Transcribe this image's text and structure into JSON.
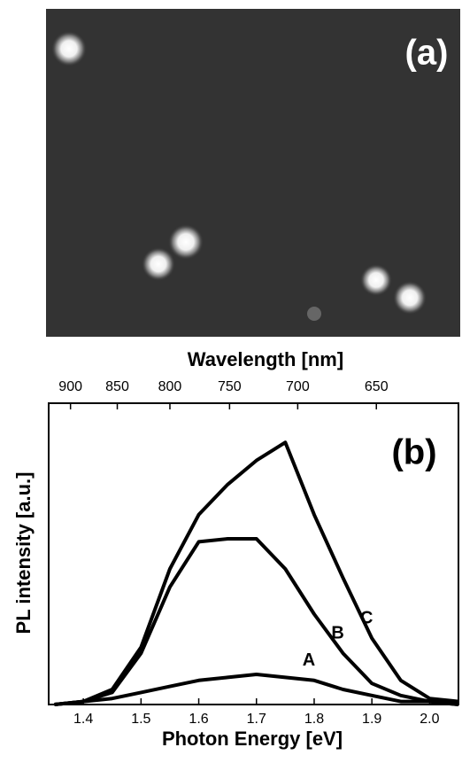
{
  "image_panel": {
    "label": "(a)"
  },
  "chart_data": {
    "type": "line",
    "panel_label": "(b)",
    "xlabel": "Photon Energy [eV]",
    "ylabel": "PL intensity [a.u.]",
    "x2label": "Wavelength [nm]",
    "x": [
      1.35,
      1.4,
      1.45,
      1.5,
      1.55,
      1.6,
      1.65,
      1.7,
      1.75,
      1.8,
      1.85,
      1.9,
      1.95,
      2.0,
      2.05
    ],
    "series": [
      {
        "name": "A",
        "color": "#000000",
        "values": [
          0,
          1,
          2,
          4,
          6,
          8,
          9,
          10,
          9,
          8,
          5,
          3,
          1,
          1,
          0
        ]
      },
      {
        "name": "B",
        "color": "#000000",
        "values": [
          0,
          1,
          4,
          17,
          39,
          54,
          55,
          55,
          45,
          30,
          17,
          7,
          3,
          1,
          0
        ]
      },
      {
        "name": "C",
        "color": "#000000",
        "values": [
          0,
          1,
          5,
          19,
          45,
          63,
          73,
          81,
          87,
          63,
          42,
          22,
          8,
          2,
          1
        ]
      }
    ],
    "xlim": [
      1.34,
      2.05
    ],
    "xticks": [
      1.4,
      1.5,
      1.6,
      1.7,
      1.8,
      1.9,
      {
        "value": 2,
        "label": "2.0"
      }
    ],
    "x2lim": [
      925.4,
      604.9
    ],
    "x2scale": "reciprocal",
    "x2ticks": [
      900,
      850,
      800,
      750,
      700,
      650
    ],
    "ylim": [
      0,
      100
    ]
  }
}
